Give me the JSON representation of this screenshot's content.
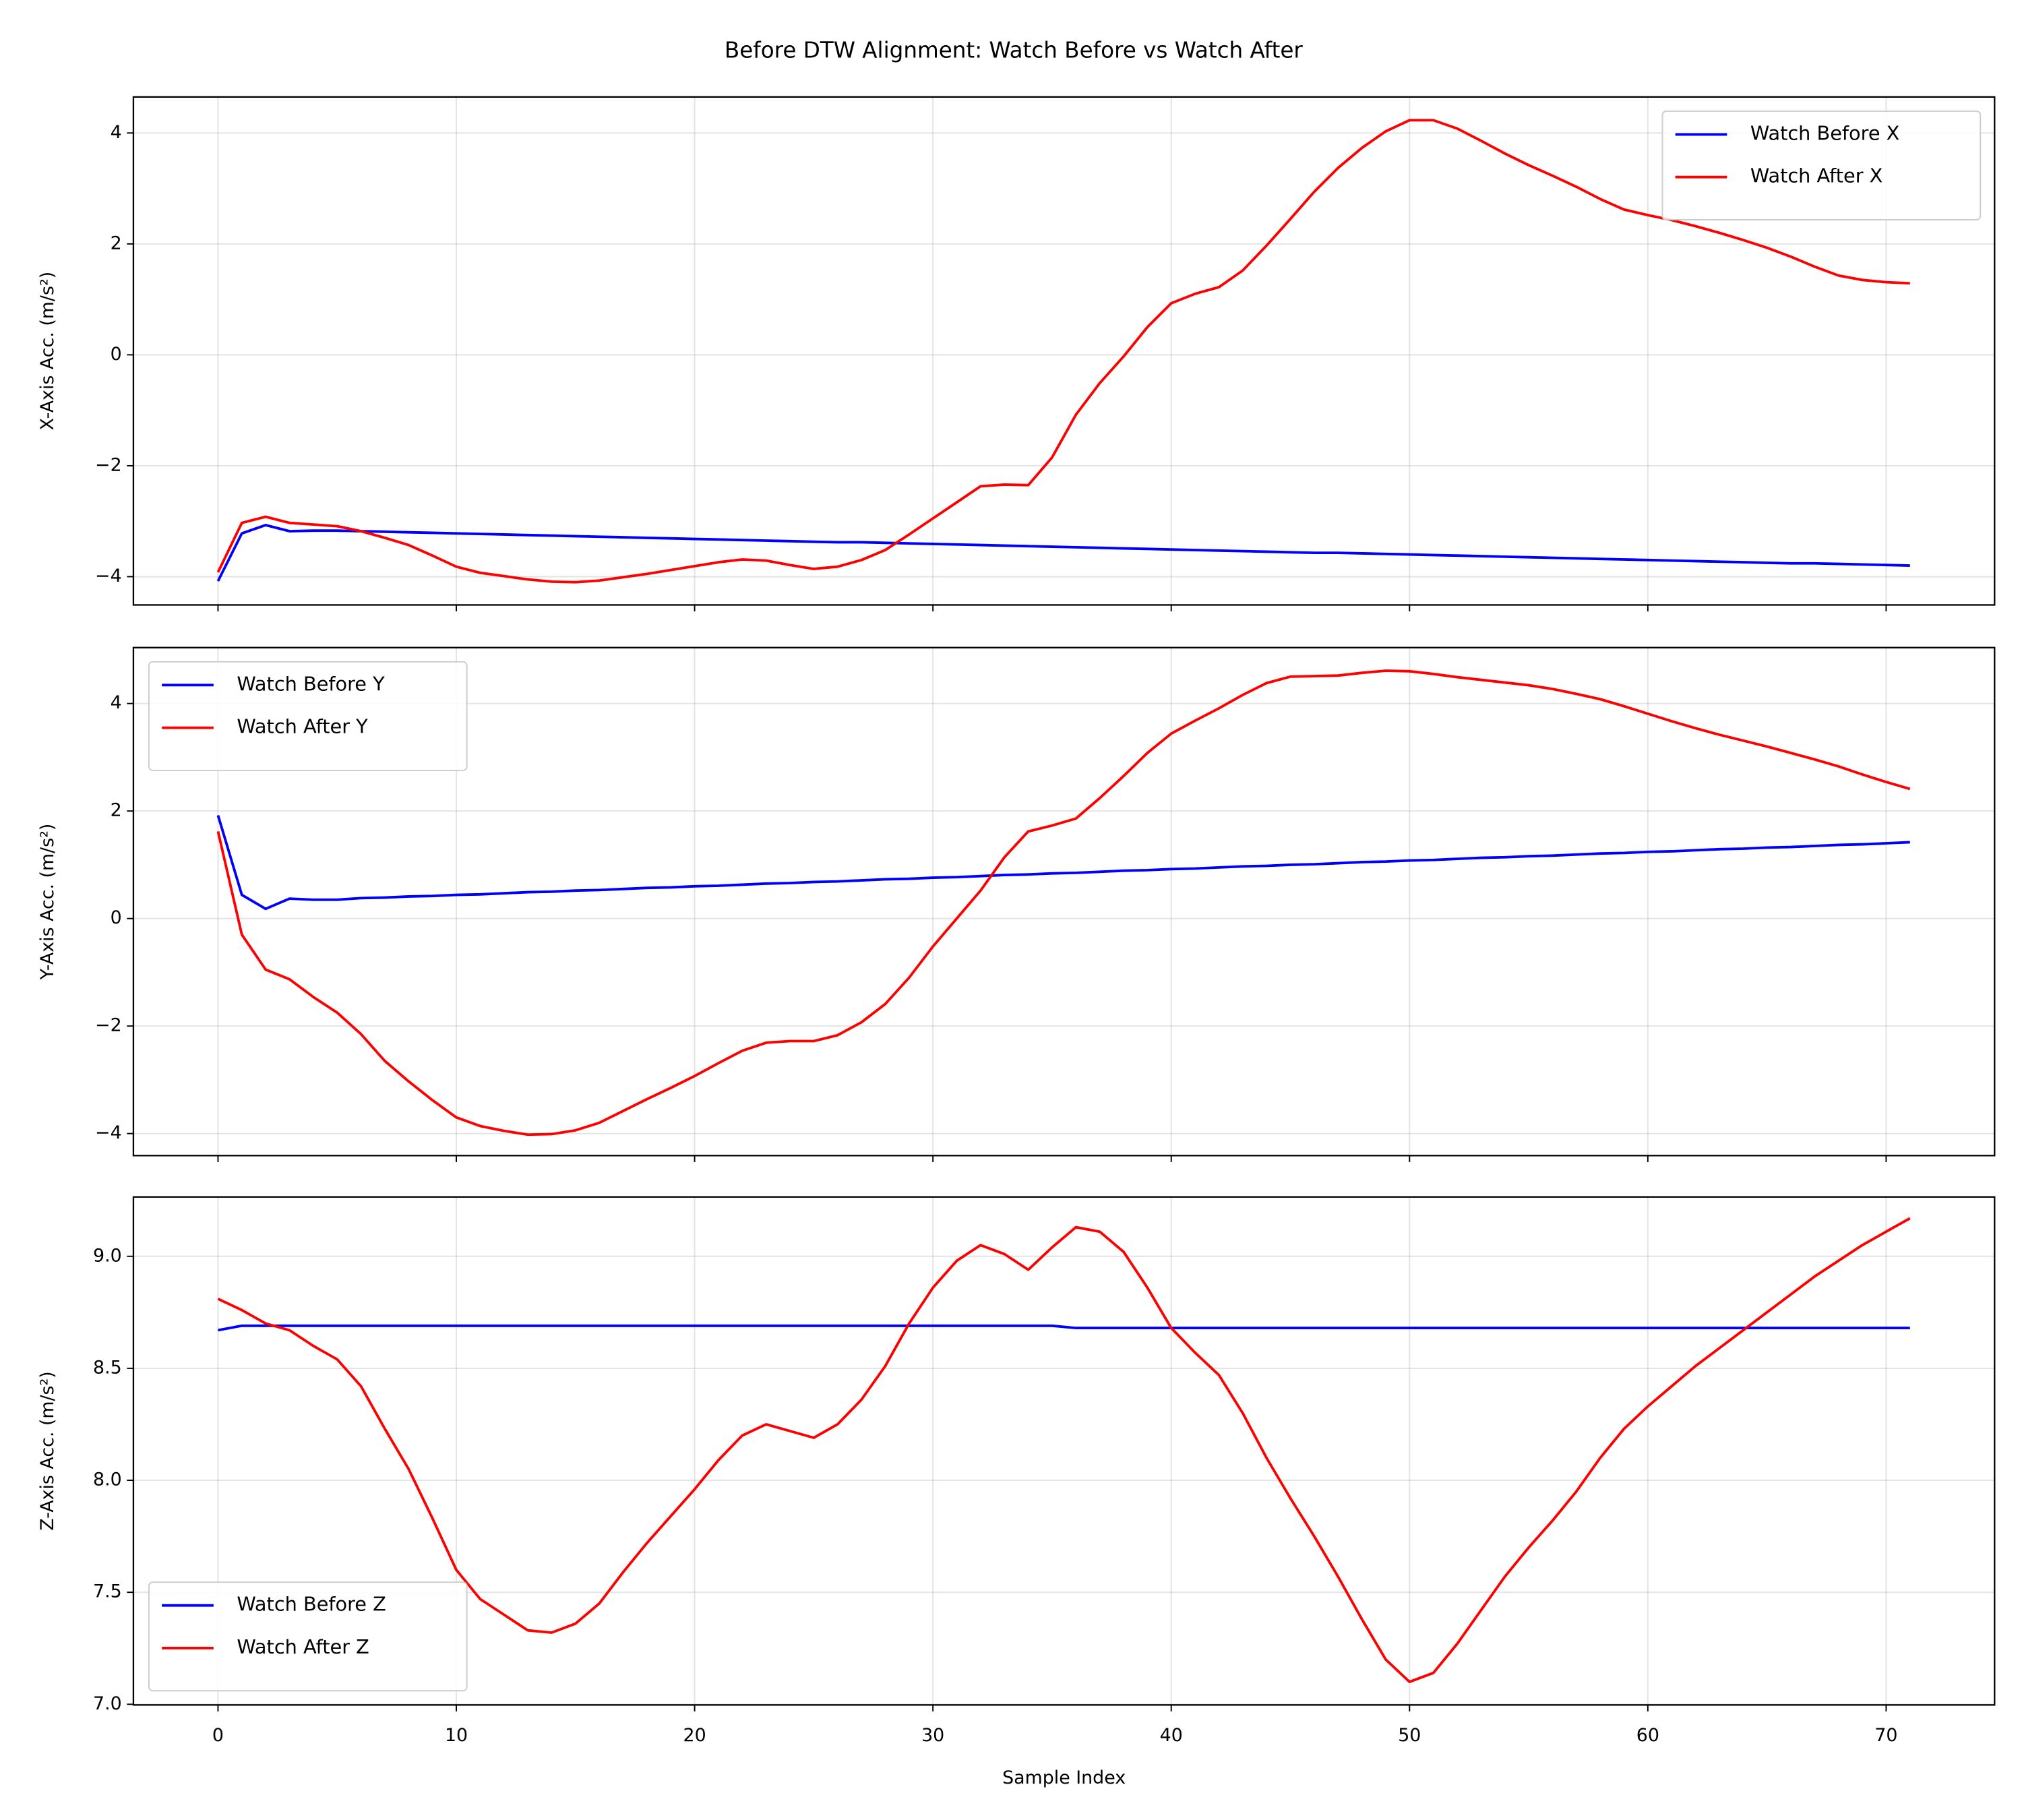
{
  "title": "Before DTW Alignment: Watch Before vs Watch After",
  "chart_data": [
    {
      "type": "line",
      "ylabel": "X-Axis Acc. (m/s²)",
      "grid": true,
      "legend": "upper right",
      "x": [
        0,
        1,
        2,
        3,
        4,
        5,
        6,
        7,
        8,
        9,
        10,
        11,
        12,
        13,
        14,
        15,
        16,
        17,
        18,
        19,
        20,
        21,
        22,
        23,
        24,
        25,
        26,
        27,
        28,
        29,
        30,
        31,
        32,
        33,
        34,
        35,
        36,
        37,
        38,
        39,
        40,
        41,
        42,
        43,
        44,
        45,
        46,
        47,
        48,
        49,
        50,
        51,
        52,
        53,
        54,
        55,
        56,
        57,
        58,
        59,
        60,
        61,
        62,
        63,
        64,
        65,
        66,
        67,
        68,
        69,
        70,
        71
      ],
      "xlim": [
        -3.55,
        74.55
      ],
      "xticks": [
        0,
        10,
        20,
        30,
        40,
        50,
        60,
        70
      ],
      "ylim": [
        -4.51,
        4.65
      ],
      "yticks": [
        {
          "value": -4,
          "label": "−4"
        },
        {
          "value": -2,
          "label": "−2"
        },
        0,
        2,
        4
      ],
      "series": [
        {
          "name": "Watch Before X",
          "color": "#0000ff",
          "values": [
            -4.08,
            -3.22,
            -3.07,
            -3.18,
            -3.17,
            -3.17,
            -3.18,
            -3.19,
            -3.2,
            -3.21,
            -3.22,
            -3.23,
            -3.24,
            -3.25,
            -3.26,
            -3.27,
            -3.28,
            -3.29,
            -3.3,
            -3.31,
            -3.32,
            -3.33,
            -3.34,
            -3.35,
            -3.36,
            -3.37,
            -3.38,
            -3.38,
            -3.39,
            -3.4,
            -3.41,
            -3.42,
            -3.43,
            -3.44,
            -3.45,
            -3.46,
            -3.47,
            -3.48,
            -3.49,
            -3.5,
            -3.51,
            -3.52,
            -3.53,
            -3.54,
            -3.55,
            -3.56,
            -3.57,
            -3.57,
            -3.58,
            -3.59,
            -3.6,
            -3.61,
            -3.62,
            -3.63,
            -3.64,
            -3.65,
            -3.66,
            -3.67,
            -3.68,
            -3.69,
            -3.7,
            -3.71,
            -3.72,
            -3.73,
            -3.74,
            -3.75,
            -3.76,
            -3.76,
            -3.77,
            -3.78,
            -3.79,
            -3.8
          ]
        },
        {
          "name": "Watch After X",
          "color": "#ff0000",
          "values": [
            -3.92,
            -3.03,
            -2.92,
            -3.03,
            -3.06,
            -3.09,
            -3.18,
            -3.3,
            -3.43,
            -3.62,
            -3.82,
            -3.93,
            -3.99,
            -4.05,
            -4.09,
            -4.1,
            -4.07,
            -4.01,
            -3.95,
            -3.88,
            -3.81,
            -3.74,
            -3.69,
            -3.71,
            -3.79,
            -3.86,
            -3.82,
            -3.7,
            -3.52,
            -3.24,
            -2.95,
            -2.66,
            -2.37,
            -2.34,
            -2.35,
            -1.85,
            -1.08,
            -0.51,
            -0.03,
            0.5,
            0.93,
            1.1,
            1.22,
            1.52,
            1.97,
            2.45,
            2.94,
            3.37,
            3.73,
            4.03,
            4.23,
            4.23,
            4.08,
            3.86,
            3.63,
            3.42,
            3.23,
            3.03,
            2.81,
            2.62,
            2.52,
            2.43,
            2.32,
            2.2,
            2.07,
            1.93,
            1.77,
            1.59,
            1.43,
            1.35,
            1.31,
            1.29
          ]
        }
      ]
    },
    {
      "type": "line",
      "ylabel": "Y-Axis Acc. (m/s²)",
      "grid": true,
      "legend": "upper left",
      "x": [
        0,
        1,
        2,
        3,
        4,
        5,
        6,
        7,
        8,
        9,
        10,
        11,
        12,
        13,
        14,
        15,
        16,
        17,
        18,
        19,
        20,
        21,
        22,
        23,
        24,
        25,
        26,
        27,
        28,
        29,
        30,
        31,
        32,
        33,
        34,
        35,
        36,
        37,
        38,
        39,
        40,
        41,
        42,
        43,
        44,
        45,
        46,
        47,
        48,
        49,
        50,
        51,
        52,
        53,
        54,
        55,
        56,
        57,
        58,
        59,
        60,
        61,
        62,
        63,
        64,
        65,
        66,
        67,
        68,
        69,
        70,
        71
      ],
      "xlim": [
        -3.55,
        74.55
      ],
      "xticks": [
        0,
        10,
        20,
        30,
        40,
        50,
        60,
        70
      ],
      "ylim": [
        -4.41,
        5.04
      ],
      "yticks": [
        {
          "value": -4,
          "label": "−4"
        },
        {
          "value": -2,
          "label": "−2"
        },
        0,
        2,
        4
      ],
      "series": [
        {
          "name": "Watch Before Y",
          "color": "#0000ff",
          "values": [
            1.92,
            0.44,
            0.18,
            0.37,
            0.35,
            0.35,
            0.38,
            0.39,
            0.41,
            0.42,
            0.44,
            0.45,
            0.47,
            0.49,
            0.5,
            0.52,
            0.53,
            0.55,
            0.57,
            0.58,
            0.6,
            0.61,
            0.63,
            0.65,
            0.66,
            0.68,
            0.69,
            0.71,
            0.73,
            0.74,
            0.76,
            0.77,
            0.79,
            0.81,
            0.82,
            0.84,
            0.85,
            0.87,
            0.89,
            0.9,
            0.92,
            0.93,
            0.95,
            0.97,
            0.98,
            1.0,
            1.01,
            1.03,
            1.05,
            1.06,
            1.08,
            1.09,
            1.11,
            1.13,
            1.14,
            1.16,
            1.17,
            1.19,
            1.21,
            1.22,
            1.24,
            1.25,
            1.27,
            1.29,
            1.3,
            1.32,
            1.33,
            1.35,
            1.37,
            1.38,
            1.4,
            1.42
          ]
        },
        {
          "name": "Watch After Y",
          "color": "#ff0000",
          "values": [
            1.62,
            -0.3,
            -0.95,
            -1.13,
            -1.46,
            -1.75,
            -2.15,
            -2.65,
            -3.03,
            -3.38,
            -3.7,
            -3.86,
            -3.95,
            -4.02,
            -4.01,
            -3.94,
            -3.8,
            -3.58,
            -3.36,
            -3.15,
            -2.93,
            -2.69,
            -2.46,
            -2.31,
            -2.28,
            -2.28,
            -2.17,
            -1.93,
            -1.59,
            -1.1,
            -0.52,
            0.0,
            0.52,
            1.14,
            1.62,
            1.73,
            1.86,
            2.24,
            2.65,
            3.08,
            3.44,
            3.68,
            3.91,
            4.16,
            4.38,
            4.5,
            4.51,
            4.52,
            4.57,
            4.61,
            4.6,
            4.55,
            4.49,
            4.44,
            4.39,
            4.34,
            4.27,
            4.18,
            4.08,
            3.95,
            3.81,
            3.67,
            3.54,
            3.42,
            3.31,
            3.2,
            3.08,
            2.96,
            2.83,
            2.68,
            2.54,
            2.41
          ]
        }
      ]
    },
    {
      "type": "line",
      "ylabel": "Z-Axis Acc. (m/s²)",
      "xlabel": "Sample Index",
      "grid": true,
      "legend": "lower left",
      "x": [
        0,
        1,
        2,
        3,
        4,
        5,
        6,
        7,
        8,
        9,
        10,
        11,
        12,
        13,
        14,
        15,
        16,
        17,
        18,
        19,
        20,
        21,
        22,
        23,
        24,
        25,
        26,
        27,
        28,
        29,
        30,
        31,
        32,
        33,
        34,
        35,
        36,
        37,
        38,
        39,
        40,
        41,
        42,
        43,
        44,
        45,
        46,
        47,
        48,
        49,
        50,
        51,
        52,
        53,
        54,
        55,
        56,
        57,
        58,
        59,
        60,
        61,
        62,
        63,
        64,
        65,
        66,
        67,
        68,
        69,
        70,
        71
      ],
      "xlim": [
        -3.55,
        74.55
      ],
      "xticks": [
        0,
        10,
        20,
        30,
        40,
        50,
        60,
        70
      ],
      "ylim": [
        6.997,
        9.265
      ],
      "yticks": [
        {
          "value": 7,
          "label": "7.0"
        },
        7.5,
        {
          "value": 8,
          "label": "8.0"
        },
        8.5,
        {
          "value": 9,
          "label": "9.0"
        }
      ],
      "series": [
        {
          "name": "Watch Before Z",
          "color": "#0000ff",
          "values": [
            8.67,
            8.69,
            8.69,
            8.69,
            8.69,
            8.69,
            8.69,
            8.69,
            8.69,
            8.69,
            8.69,
            8.69,
            8.69,
            8.69,
            8.69,
            8.69,
            8.69,
            8.69,
            8.69,
            8.69,
            8.69,
            8.69,
            8.69,
            8.69,
            8.69,
            8.69,
            8.69,
            8.69,
            8.69,
            8.69,
            8.69,
            8.69,
            8.69,
            8.69,
            8.69,
            8.69,
            8.68,
            8.68,
            8.68,
            8.68,
            8.68,
            8.68,
            8.68,
            8.68,
            8.68,
            8.68,
            8.68,
            8.68,
            8.68,
            8.68,
            8.68,
            8.68,
            8.68,
            8.68,
            8.68,
            8.68,
            8.68,
            8.68,
            8.68,
            8.68,
            8.68,
            8.68,
            8.68,
            8.68,
            8.68,
            8.68,
            8.68,
            8.68,
            8.68,
            8.68,
            8.68,
            8.68
          ]
        },
        {
          "name": "Watch After Z",
          "color": "#ff0000",
          "values": [
            8.81,
            8.76,
            8.7,
            8.67,
            8.6,
            8.54,
            8.42,
            8.23,
            8.05,
            7.83,
            7.6,
            7.47,
            7.4,
            7.33,
            7.32,
            7.36,
            7.45,
            7.59,
            7.72,
            7.84,
            7.96,
            8.09,
            8.2,
            8.25,
            8.22,
            8.19,
            8.25,
            8.36,
            8.51,
            8.7,
            8.86,
            8.98,
            9.05,
            9.01,
            8.94,
            9.04,
            9.13,
            9.11,
            9.02,
            8.86,
            8.68,
            8.57,
            8.47,
            8.3,
            8.1,
            7.92,
            7.75,
            7.57,
            7.38,
            7.2,
            7.1,
            7.14,
            7.27,
            7.42,
            7.57,
            7.7,
            7.82,
            7.95,
            8.1,
            8.23,
            8.33,
            8.42,
            8.51,
            8.59,
            8.67,
            8.75,
            8.83,
            8.91,
            8.98,
            9.05,
            9.11,
            9.17
          ]
        }
      ]
    }
  ]
}
